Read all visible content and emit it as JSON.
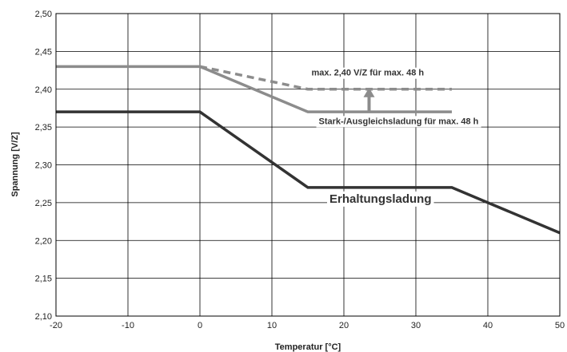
{
  "chart_data": {
    "type": "line",
    "xlabel": "Temperatur [°C]",
    "ylabel": "Spannung [V/Z]",
    "xlim": [
      -20,
      50
    ],
    "ylim": [
      2.1,
      2.5
    ],
    "xticks": [
      -20,
      -10,
      0,
      10,
      20,
      30,
      40,
      50
    ],
    "xtick_labels": [
      "-20",
      "-10",
      "0",
      "10",
      "20",
      "30",
      "40",
      "50"
    ],
    "yticks": [
      2.1,
      2.15,
      2.2,
      2.25,
      2.3,
      2.35,
      2.4,
      2.45,
      2.5
    ],
    "ytick_labels": [
      "2,10",
      "2,15",
      "2,20",
      "2,25",
      "2,30",
      "2,35",
      "2,40",
      "2,45",
      "2,50"
    ],
    "grid": true,
    "series": [
      {
        "name": "Erhaltungsladung",
        "color": "#333333",
        "dash": false,
        "x": [
          -20,
          0,
          15,
          35,
          50
        ],
        "y": [
          2.37,
          2.37,
          2.27,
          2.27,
          2.21
        ]
      },
      {
        "name": "Stark-/Ausgleichsladung für max. 48 h",
        "color": "#8c8c8c",
        "dash": false,
        "x": [
          -20,
          0,
          15,
          35
        ],
        "y": [
          2.43,
          2.43,
          2.37,
          2.37
        ]
      },
      {
        "name": "max. 2,40 V/Z für max. 48 h",
        "color": "#8c8c8c",
        "dash": true,
        "x": [
          0,
          15,
          35
        ],
        "y": [
          2.43,
          2.4,
          2.4
        ]
      }
    ],
    "arrow": {
      "x": 23.5,
      "y_from": 2.37,
      "y_to": 2.4,
      "color": "#8c8c8c"
    },
    "annotations": [
      {
        "text": "max. 2,40 V/Z für max. 48 h",
        "x": 15.5,
        "y": 2.418,
        "size": 11
      },
      {
        "text": "Stark-/Ausgleichsladung für max. 48 h",
        "x": 16.5,
        "y": 2.354,
        "size": 11
      },
      {
        "text": "Erhaltungsladung",
        "x": 18,
        "y": 2.25,
        "size": 15
      }
    ]
  }
}
